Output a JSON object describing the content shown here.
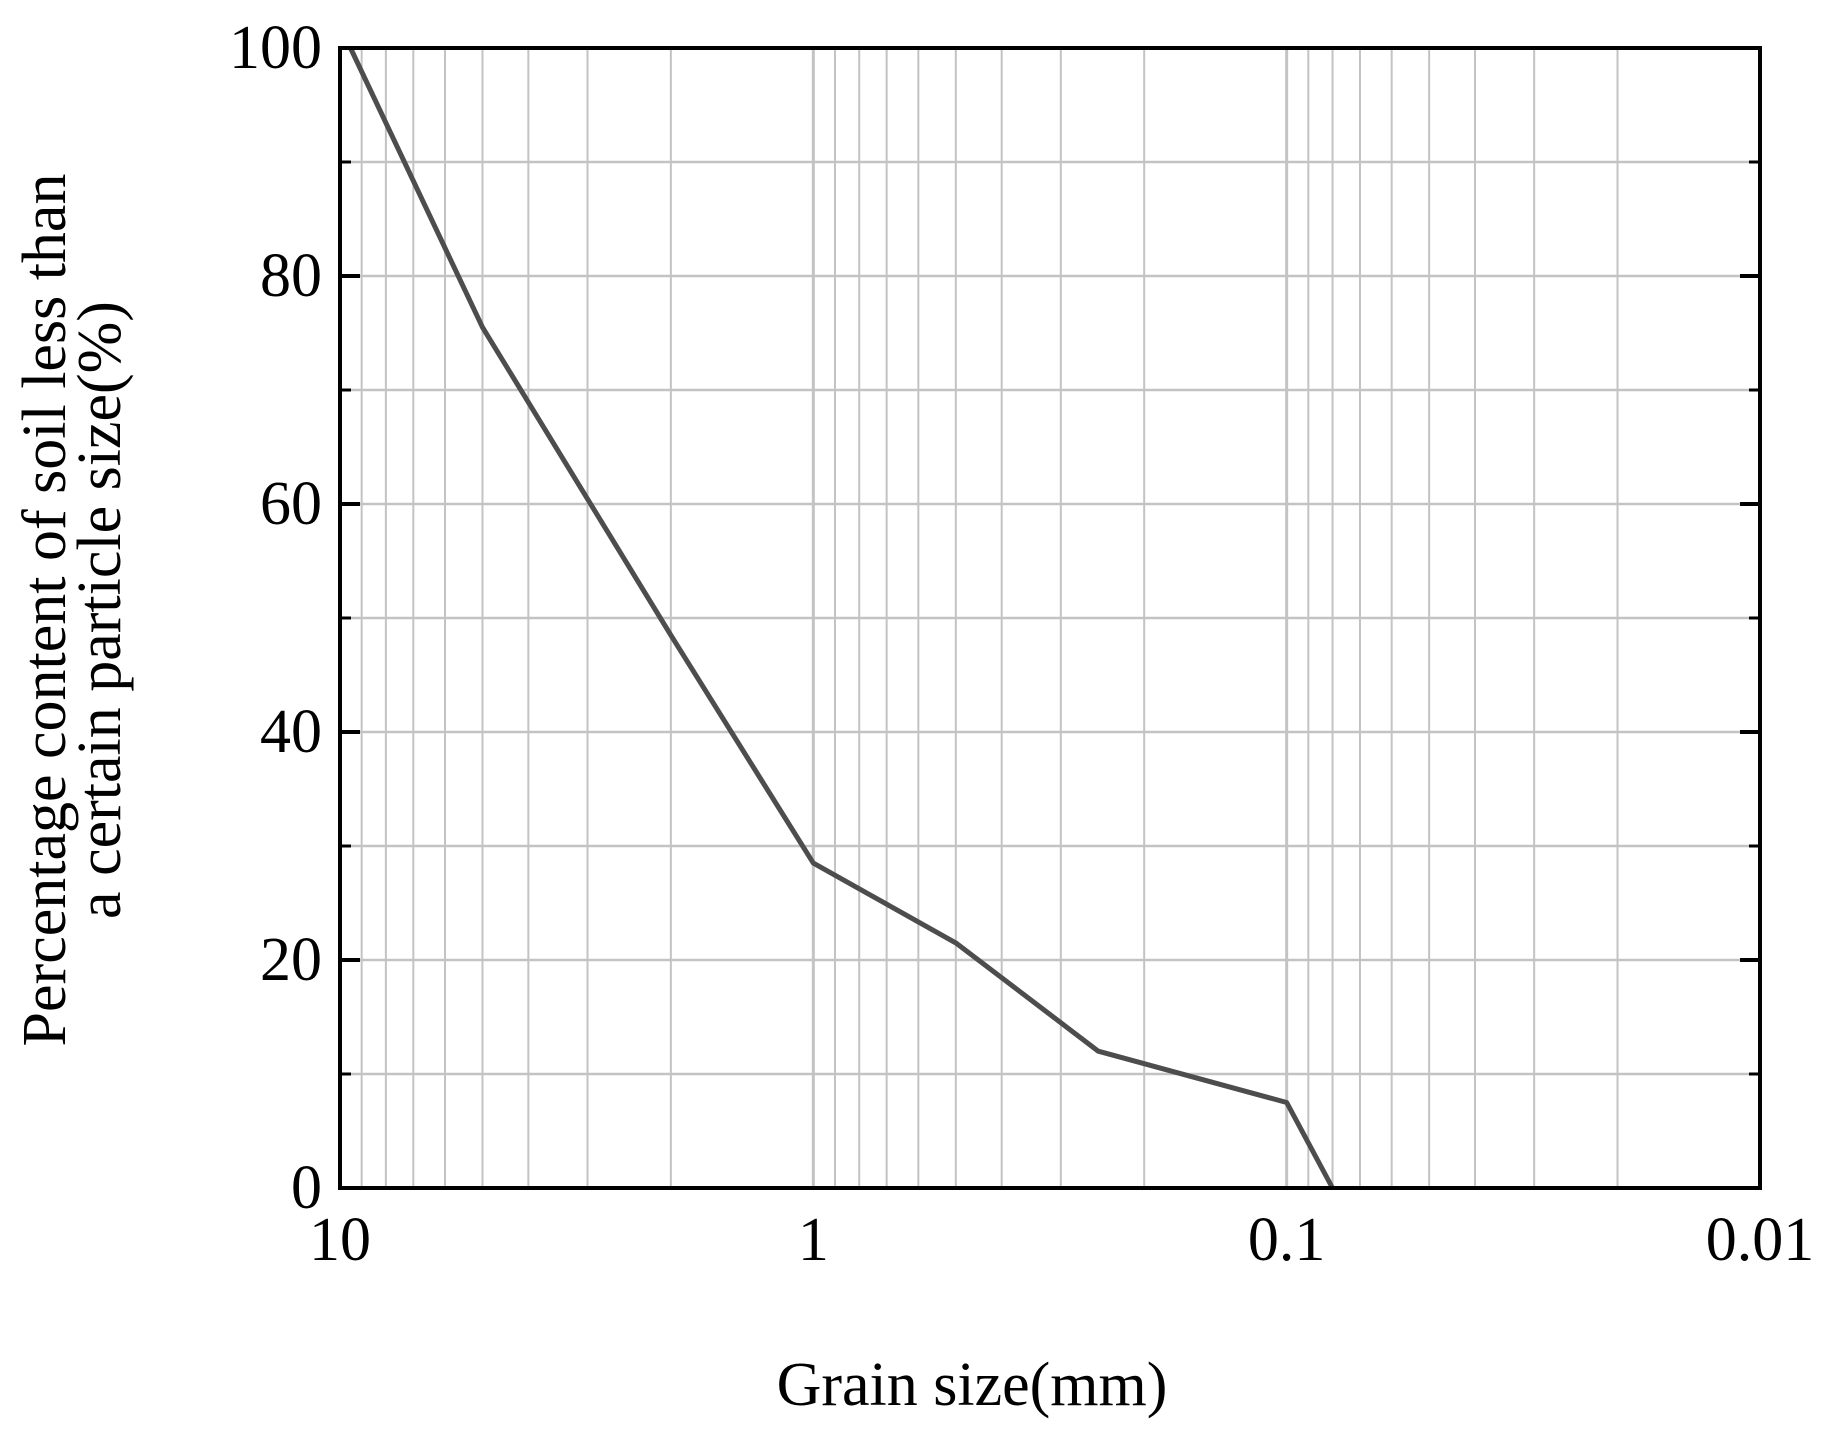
{
  "chart_data": {
    "type": "line",
    "title": "",
    "xlabel": "Grain size(mm)",
    "ylabel_lines": [
      "Percentage content of soil less than",
      "a certain particle size(%)"
    ],
    "x_scale": "log",
    "x_reversed": true,
    "xlim": [
      10,
      0.01
    ],
    "ylim": [
      0,
      100
    ],
    "x_ticks": [
      10,
      1,
      0.1,
      0.01
    ],
    "x_tick_labels": [
      "10",
      "1",
      "0.1",
      "0.01"
    ],
    "y_ticks": [
      0,
      20,
      40,
      60,
      80,
      100
    ],
    "y_tick_labels": [
      "0",
      "20",
      "40",
      "60",
      "80",
      "100"
    ],
    "y_minor_ticks": [
      10,
      30,
      50,
      70,
      90
    ],
    "grid": true,
    "series": [
      {
        "color": "#4d4d4d",
        "x": [
          9.5,
          5,
          2,
          1,
          0.5,
          0.25,
          0.1,
          0.08
        ],
        "y": [
          100,
          75.5,
          48.5,
          28.5,
          21.5,
          12,
          7.5,
          0
        ]
      }
    ]
  }
}
